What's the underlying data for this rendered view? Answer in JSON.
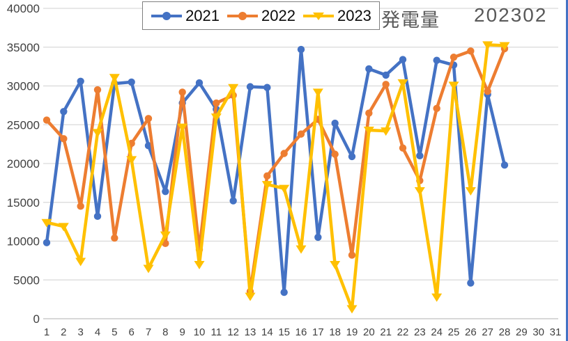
{
  "chart_data": {
    "type": "line",
    "title": "発電量",
    "period_label": "202302",
    "xlabel": "",
    "ylabel": "",
    "ylim": [
      0,
      40000
    ],
    "ytick_step": 5000,
    "y_ticks": [
      0,
      5000,
      10000,
      15000,
      20000,
      25000,
      30000,
      35000,
      40000
    ],
    "x_ticks": [
      1,
      2,
      3,
      4,
      5,
      6,
      7,
      8,
      9,
      10,
      11,
      12,
      13,
      14,
      15,
      16,
      17,
      18,
      19,
      20,
      21,
      22,
      23,
      24,
      25,
      26,
      27,
      28,
      29,
      30,
      31
    ],
    "grid": true,
    "legend_position": "top",
    "series": [
      {
        "name": "2021",
        "color": "#4472C4",
        "marker": "circle",
        "values": [
          9800,
          26700,
          30600,
          13200,
          30300,
          30500,
          22300,
          16400,
          27800,
          30400,
          27000,
          15200,
          29900,
          29800,
          3400,
          34700,
          10500,
          25200,
          20900,
          32200,
          31400,
          33400,
          21000,
          33300,
          32700,
          4600,
          28900,
          19800
        ]
      },
      {
        "name": "2022",
        "color": "#ED7D31",
        "marker": "circle",
        "values": [
          25600,
          23200,
          14500,
          29500,
          10400,
          22600,
          25800,
          9700,
          29200,
          8900,
          27800,
          28800,
          3500,
          18400,
          21300,
          23800,
          25700,
          21200,
          8200,
          26500,
          30200,
          22000,
          17800,
          27100,
          33700,
          34500,
          29300,
          34800
        ]
      },
      {
        "name": "2023",
        "color": "#FFC000",
        "marker": "triangle-down",
        "values": [
          12400,
          11900,
          7400,
          24000,
          31100,
          20500,
          6500,
          10800,
          24700,
          7000,
          26000,
          29800,
          2900,
          17300,
          16800,
          9000,
          29200,
          7000,
          1300,
          24300,
          24200,
          30400,
          16500,
          2800,
          30100,
          16500,
          35300,
          35200
        ]
      }
    ],
    "colors": {
      "gridline": "#D9D9D9",
      "axis_line": "#BFBFBF",
      "tick_label": "#404040",
      "title_text": "#595959",
      "window_border": "#4472C4"
    }
  }
}
